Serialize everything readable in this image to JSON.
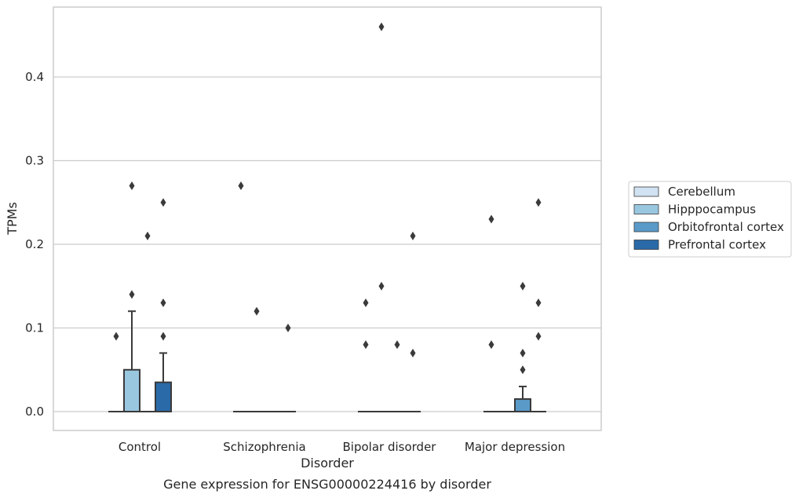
{
  "chart_data": {
    "type": "box",
    "caption": "Gene expression for ENSG00000224416 by disorder",
    "xlabel": "Disorder",
    "ylabel": "TPMs",
    "ylim": [
      -0.022,
      0.483
    ],
    "yticks": [
      0.0,
      0.1,
      0.2,
      0.3,
      0.4
    ],
    "ytick_labels": [
      "0.0",
      "0.1",
      "0.2",
      "0.3",
      "0.4"
    ],
    "grid": "horizontal",
    "legend_position": "right",
    "categories": [
      "Control",
      "Schizophrenia",
      "Bipolar disorder",
      "Major depression"
    ],
    "series": [
      {
        "name": "Cerebellum",
        "color": "#d1e2f2",
        "boxes": [
          {
            "q1": 0,
            "median": 0,
            "q3": 0,
            "whisker_low": 0,
            "whisker_high": 0,
            "outliers": [
              0.09
            ]
          },
          {
            "q1": 0,
            "median": 0,
            "q3": 0,
            "whisker_low": 0,
            "whisker_high": 0,
            "outliers": [
              0.27
            ]
          },
          {
            "q1": 0,
            "median": 0,
            "q3": 0,
            "whisker_low": 0,
            "whisker_high": 0,
            "outliers": [
              0.08,
              0.13
            ]
          },
          {
            "q1": 0,
            "median": 0,
            "q3": 0,
            "whisker_low": 0,
            "whisker_high": 0,
            "outliers": [
              0.08,
              0.23
            ]
          }
        ]
      },
      {
        "name": "Hipppocampus",
        "color": "#9ac7e0",
        "boxes": [
          {
            "q1": 0,
            "median": 0,
            "q3": 0.05,
            "whisker_low": 0,
            "whisker_high": 0.12,
            "outliers": [
              0.14,
              0.27
            ]
          },
          {
            "q1": 0,
            "median": 0,
            "q3": 0,
            "whisker_low": 0,
            "whisker_high": 0,
            "outliers": [
              0.12
            ]
          },
          {
            "q1": 0,
            "median": 0,
            "q3": 0,
            "whisker_low": 0,
            "whisker_high": 0,
            "outliers": [
              0.15,
              0.46
            ]
          },
          {
            "q1": 0,
            "median": 0,
            "q3": 0,
            "whisker_low": 0,
            "whisker_high": 0,
            "outliers": []
          }
        ]
      },
      {
        "name": "Orbitofrontal cortex",
        "color": "#5a9ac8",
        "boxes": [
          {
            "q1": 0,
            "median": 0,
            "q3": 0,
            "whisker_low": 0,
            "whisker_high": 0,
            "outliers": [
              0.21
            ]
          },
          {
            "q1": 0,
            "median": 0,
            "q3": 0,
            "whisker_low": 0,
            "whisker_high": 0,
            "outliers": []
          },
          {
            "q1": 0,
            "median": 0,
            "q3": 0,
            "whisker_low": 0,
            "whisker_high": 0,
            "outliers": [
              0.08
            ]
          },
          {
            "q1": 0,
            "median": 0,
            "q3": 0.015,
            "whisker_low": 0,
            "whisker_high": 0.03,
            "outliers": [
              0.05,
              0.07,
              0.15
            ]
          }
        ]
      },
      {
        "name": "Prefrontal cortex",
        "color": "#2a6aa8",
        "boxes": [
          {
            "q1": 0,
            "median": 0,
            "q3": 0.035,
            "whisker_low": 0,
            "whisker_high": 0.07,
            "outliers": [
              0.09,
              0.13,
              0.25
            ]
          },
          {
            "q1": 0,
            "median": 0,
            "q3": 0,
            "whisker_low": 0,
            "whisker_high": 0,
            "outliers": [
              0.1
            ]
          },
          {
            "q1": 0,
            "median": 0,
            "q3": 0,
            "whisker_low": 0,
            "whisker_high": 0,
            "outliers": [
              0.07,
              0.21
            ]
          },
          {
            "q1": 0,
            "median": 0,
            "q3": 0,
            "whisker_low": 0,
            "whisker_high": 0,
            "outliers": [
              0.09,
              0.13,
              0.25
            ]
          }
        ]
      }
    ]
  }
}
